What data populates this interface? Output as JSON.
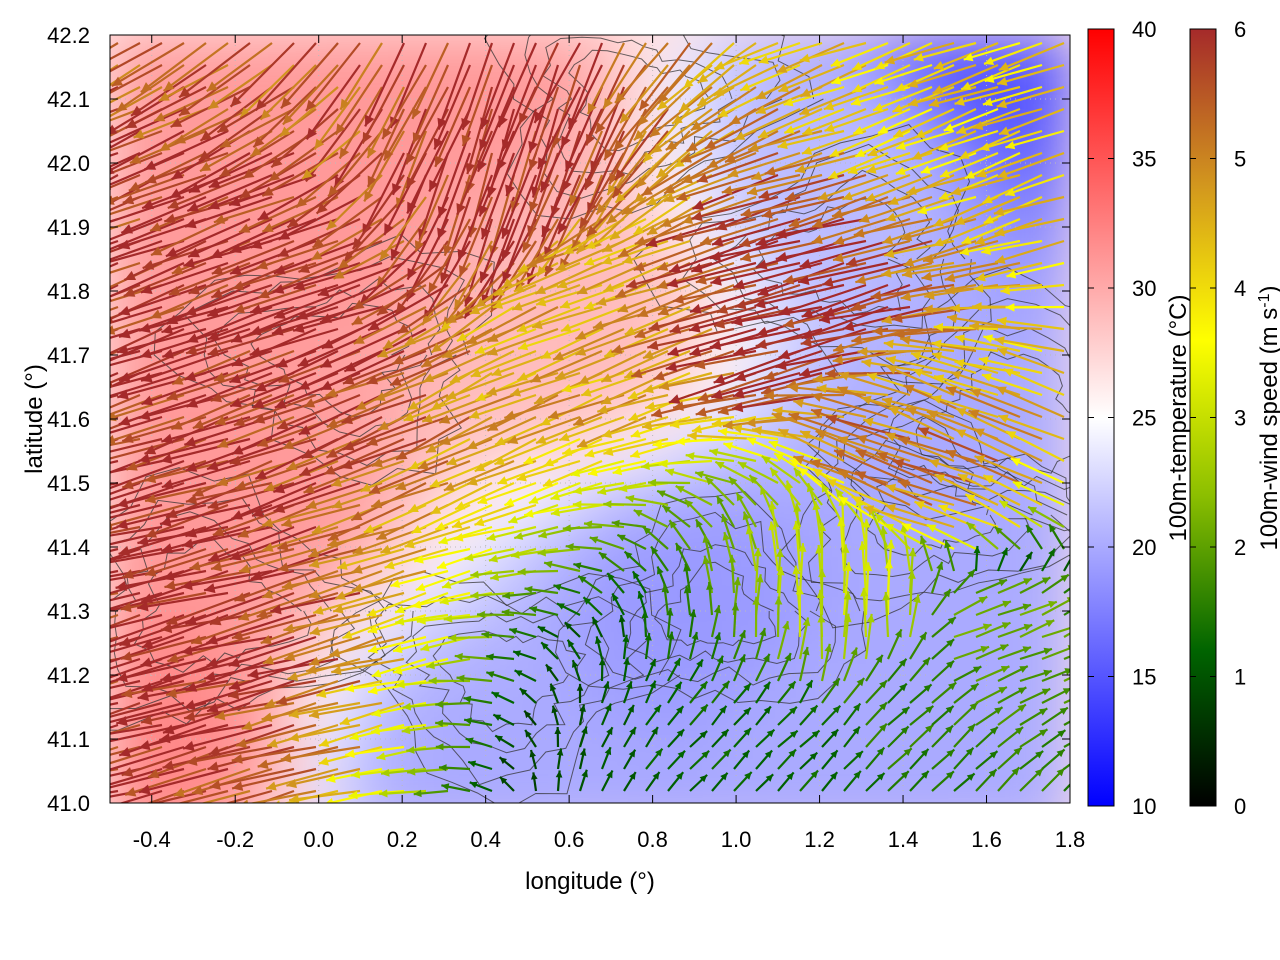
{
  "chart_data": {
    "type": "heatmap",
    "xlabel": "longitude (°)",
    "ylabel": "latitude (°)",
    "xlim": [
      -0.5,
      1.8
    ],
    "ylim": [
      41.0,
      42.2
    ],
    "x_ticks": [
      -0.4,
      -0.2,
      0.0,
      0.2,
      0.4,
      0.6,
      0.8,
      1.0,
      1.2,
      1.4,
      1.6,
      1.8
    ],
    "y_ticks": [
      41.0,
      41.1,
      41.2,
      41.3,
      41.4,
      41.5,
      41.6,
      41.7,
      41.8,
      41.9,
      42.0,
      42.1,
      42.2
    ],
    "x_tick_labels": [
      "-0.4",
      "-0.2",
      "0.0",
      "0.2",
      "0.4",
      "0.6",
      "0.8",
      "1.0",
      "1.2",
      "1.4",
      "1.6",
      "1.8"
    ],
    "y_tick_labels": [
      "41.0",
      "41.1",
      "41.2",
      "41.3",
      "41.4",
      "41.5",
      "41.6",
      "41.7",
      "41.8",
      "41.9",
      "42.0",
      "42.1",
      "42.2"
    ],
    "grid": true,
    "temperature_colorbar": {
      "label": "100m-temperature (°C)",
      "range": [
        10,
        40
      ],
      "ticks": [
        10,
        15,
        20,
        25,
        30,
        35,
        40
      ],
      "tick_labels": [
        "10",
        "15",
        "20",
        "25",
        "30",
        "35",
        "40"
      ],
      "colors": [
        "#0000ff",
        "#ffffff",
        "#ff0000"
      ]
    },
    "wind_colorbar": {
      "label_main": "100m-wind speed (m s",
      "label_sup": "-1",
      "label_end": ")",
      "range": [
        0,
        6
      ],
      "ticks": [
        0,
        1,
        2,
        3,
        4,
        5,
        6
      ],
      "tick_labels": [
        "0",
        "1",
        "2",
        "3",
        "4",
        "5",
        "6"
      ],
      "colors": [
        "#000000",
        "#006400",
        "#8cbf00",
        "#ffff00",
        "#d2961e",
        "#a52a2a"
      ]
    },
    "temperature_field_approx": [
      {
        "lon": -0.45,
        "lat": 41.1,
        "t": 32
      },
      {
        "lon": -0.2,
        "lat": 41.5,
        "t": 31
      },
      {
        "lon": 0.0,
        "lat": 41.9,
        "t": 31
      },
      {
        "lon": 0.3,
        "lat": 42.1,
        "t": 31
      },
      {
        "lon": 0.4,
        "lat": 41.05,
        "t": 20
      },
      {
        "lon": 0.6,
        "lat": 41.75,
        "t": 29
      },
      {
        "lon": 0.9,
        "lat": 41.3,
        "t": 19
      },
      {
        "lon": 1.2,
        "lat": 41.1,
        "t": 20
      },
      {
        "lon": 1.5,
        "lat": 41.5,
        "t": 20
      },
      {
        "lon": 1.6,
        "lat": 42.15,
        "t": 15
      },
      {
        "lon": 1.3,
        "lat": 42.0,
        "t": 21
      }
    ],
    "wind_field_approx": [
      {
        "lon": -0.4,
        "lat": 41.3,
        "speed": 6,
        "dir_deg": 195
      },
      {
        "lon": 0.0,
        "lat": 41.8,
        "speed": 6,
        "dir_deg": 200
      },
      {
        "lon": 0.5,
        "lat": 42.0,
        "speed": 6,
        "dir_deg": 250
      },
      {
        "lon": 0.7,
        "lat": 41.8,
        "speed": 4.5,
        "dir_deg": 200
      },
      {
        "lon": 1.2,
        "lat": 41.8,
        "speed": 6,
        "dir_deg": 195
      },
      {
        "lon": 1.6,
        "lat": 42.1,
        "speed": 4,
        "dir_deg": 200
      },
      {
        "lon": 1.5,
        "lat": 41.5,
        "speed": 5,
        "dir_deg": 160
      },
      {
        "lon": 1.3,
        "lat": 41.3,
        "speed": 3,
        "dir_deg": 90
      },
      {
        "lon": 1.4,
        "lat": 41.15,
        "speed": 1.5,
        "dir_deg": 45
      },
      {
        "lon": 1.6,
        "lat": 41.25,
        "speed": 2,
        "dir_deg": 20
      },
      {
        "lon": 1.1,
        "lat": 41.05,
        "speed": 1.2,
        "dir_deg": 45
      }
    ]
  }
}
